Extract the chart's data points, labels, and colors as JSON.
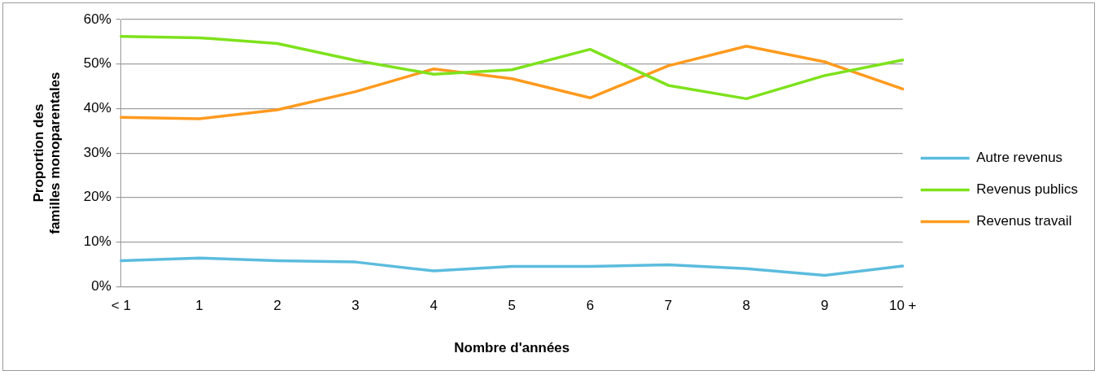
{
  "chart_data": {
    "type": "line",
    "xlabel": "Nombre d'années",
    "ylabel": "Proportion des familles monoparentales",
    "categories": [
      "< 1",
      "1",
      "2",
      "3",
      "4",
      "5",
      "6",
      "7",
      "8",
      "9",
      "10 +"
    ],
    "series": [
      {
        "name": "Autre revenus",
        "color": "#5bbcde",
        "values": [
          5.8,
          6.4,
          5.8,
          5.5,
          3.5,
          4.5,
          4.5,
          4.9,
          4.0,
          2.5,
          4.6
        ]
      },
      {
        "name": "Revenus publics",
        "color": "#7ee21c",
        "values": [
          56.2,
          55.9,
          54.6,
          50.8,
          47.7,
          48.7,
          53.3,
          45.2,
          42.2,
          47.4,
          50.9
        ]
      },
      {
        "name": "Revenus travail",
        "color": "#ff9a1e",
        "values": [
          38.0,
          37.7,
          39.7,
          43.8,
          48.9,
          46.7,
          42.4,
          49.6,
          54.0,
          50.5,
          44.4
        ]
      }
    ],
    "ylim": [
      0,
      60
    ],
    "yticks": [
      {
        "value": 0,
        "label": "0%"
      },
      {
        "value": 10,
        "label": "10%"
      },
      {
        "value": 20,
        "label": "20%"
      },
      {
        "value": 30,
        "label": "30%"
      },
      {
        "value": 40,
        "label": "40%"
      },
      {
        "value": 50,
        "label": "50%"
      },
      {
        "value": 60,
        "label": "60%"
      }
    ],
    "grid": "y",
    "legend": "right",
    "marker": "none",
    "line_style": "solid"
  }
}
